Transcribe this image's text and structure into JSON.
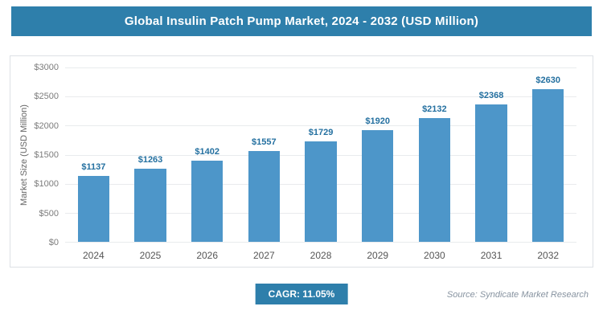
{
  "title": "Global Insulin Patch Pump Market, 2024 - 2032 (USD Million)",
  "chart_data": {
    "type": "bar",
    "title": "Global Insulin Patch Pump Market, 2024 - 2032 (USD Million)",
    "categories": [
      "2024",
      "2025",
      "2026",
      "2027",
      "2028",
      "2029",
      "2030",
      "2031",
      "2032"
    ],
    "values": [
      1137,
      1263,
      1402,
      1557,
      1729,
      1920,
      2132,
      2368,
      2630
    ],
    "value_labels": [
      "$1137",
      "$1263",
      "$1402",
      "$1557",
      "$1729",
      "$1920",
      "$2132",
      "$2368",
      "$2630"
    ],
    "xlabel": "",
    "ylabel": "Market Size (USD Million)",
    "ylim": [
      0,
      3000
    ],
    "ytick_step": 500,
    "yticks": [
      "$0",
      "$500",
      "$1000",
      "$1500",
      "$2000",
      "$2500",
      "$3000"
    ],
    "grid": true,
    "legend": false,
    "bar_color": "#4d96c9",
    "label_color": "#2470a0"
  },
  "footer": {
    "cagr_label": "CAGR: 11.05%",
    "source": "Source: Syndicate Market Research"
  },
  "colors": {
    "banner": "#2e7fab"
  }
}
